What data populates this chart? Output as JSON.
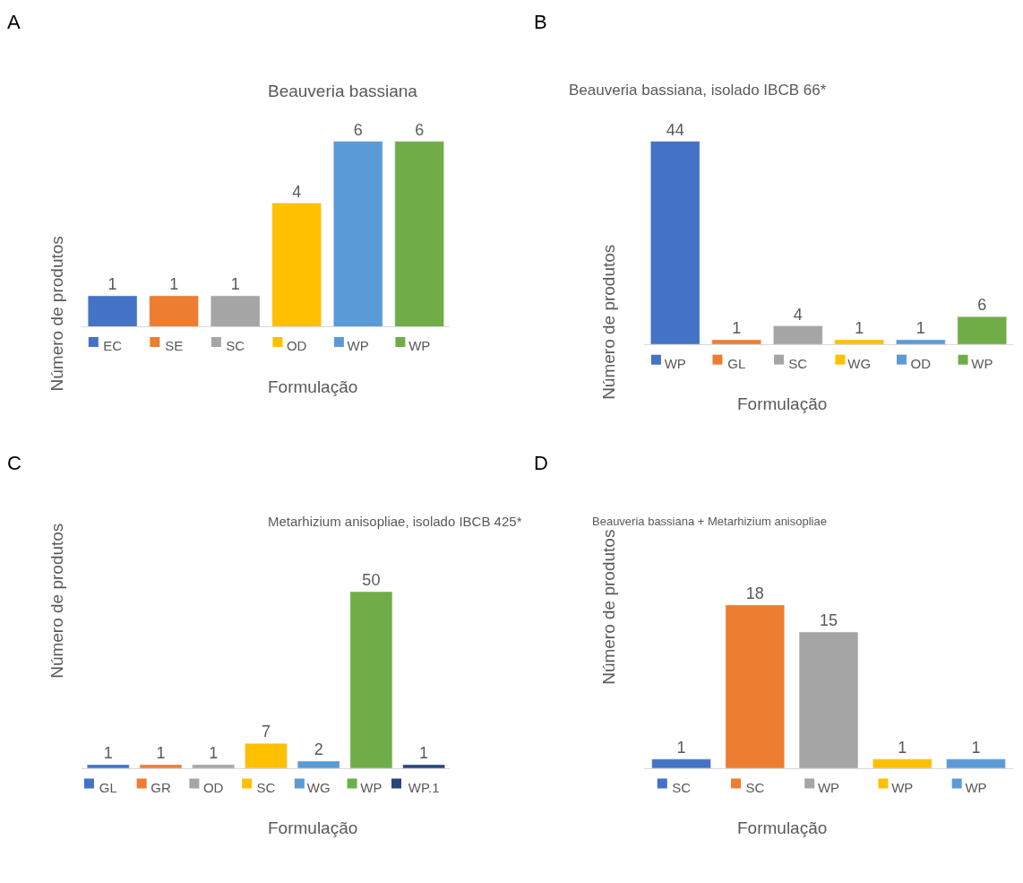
{
  "chart_data": [
    {
      "type": "bar",
      "title": "Beauveria bassiana",
      "xlabel": "Formulação",
      "ylabel": "Número de produtos",
      "annotations": [
        "A"
      ],
      "data_labels": true,
      "grid": false,
      "categories": [
        "EC",
        "SE",
        "SC",
        "OD",
        "WP",
        "WP"
      ],
      "values": [
        1,
        1,
        1,
        4,
        6,
        6
      ],
      "colors": [
        "#4472c4",
        "#ed7d31",
        "#a5a5a5",
        "#ffc000",
        "#5b9bd5",
        "#70ad47"
      ]
    },
    {
      "type": "bar",
      "title": "Beauveria bassiana, isolado IBCB 66*",
      "xlabel": "Formulação",
      "ylabel": "Número de produtos",
      "annotations": [
        "B"
      ],
      "data_labels": true,
      "grid": false,
      "categories": [
        "WP",
        "GL",
        "SC",
        "WG",
        "OD",
        "WP"
      ],
      "values": [
        44,
        1,
        4,
        1,
        1,
        6
      ],
      "colors": [
        "#4472c4",
        "#ed7d31",
        "#a5a5a5",
        "#ffc000",
        "#5b9bd5",
        "#70ad47"
      ]
    },
    {
      "type": "bar",
      "title": "Metarhizium anisopliae, isolado IBCB 425*",
      "xlabel": "Formulação",
      "ylabel": "Número de produtos",
      "annotations": [
        "C"
      ],
      "data_labels": true,
      "grid": false,
      "categories": [
        "GL",
        "GR",
        "OD",
        "SC",
        "WG",
        "WP",
        "WP.1"
      ],
      "values": [
        1,
        1,
        1,
        7,
        2,
        50,
        1
      ],
      "colors": [
        "#4472c4",
        "#ed7d31",
        "#a5a5a5",
        "#ffc000",
        "#5b9bd5",
        "#70ad47",
        "#264478"
      ]
    },
    {
      "type": "bar",
      "title": "Beauveria bassiana + Metarhizium anisopliae",
      "xlabel": "Formulação",
      "ylabel": "Número de produtos",
      "annotations": [
        "D"
      ],
      "data_labels": true,
      "grid": false,
      "categories": [
        "SC",
        "SC",
        "WP",
        "WP",
        "WP"
      ],
      "values": [
        1,
        18,
        15,
        1,
        1
      ],
      "colors": [
        "#4472c4",
        "#ed7d31",
        "#a5a5a5",
        "#ffc000",
        "#5b9bd5"
      ]
    }
  ]
}
